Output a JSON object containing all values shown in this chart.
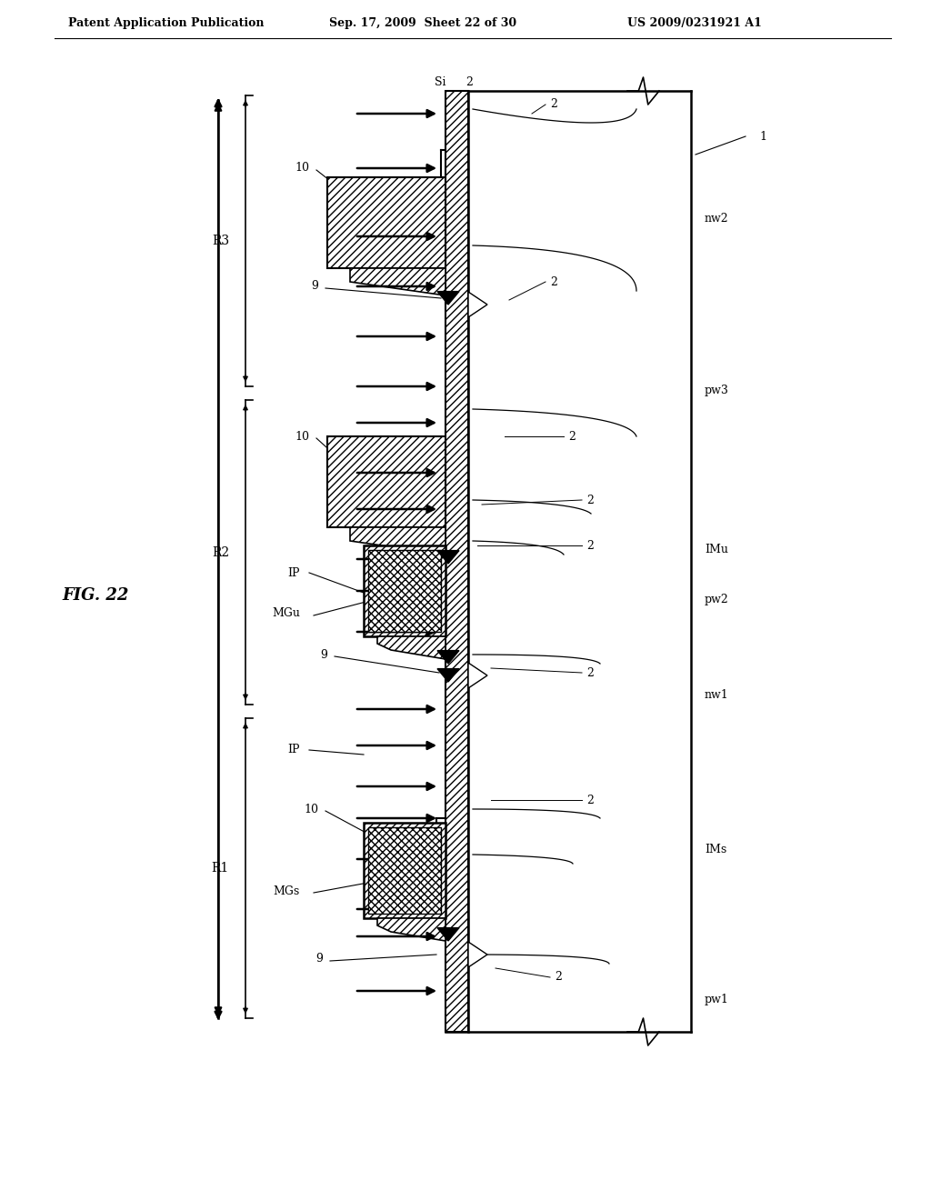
{
  "title_left": "Patent Application Publication",
  "title_center": "Sep. 17, 2009  Sheet 22 of 30",
  "title_right": "US 2009/0231921 A1",
  "fig_label": "FIG. 22",
  "background_color": "#ffffff"
}
